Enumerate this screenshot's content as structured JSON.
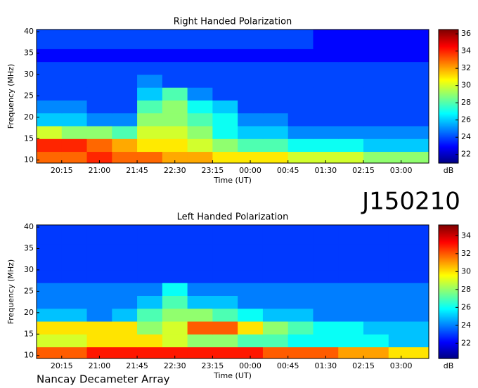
{
  "heading": "J150210",
  "footer": "Nancay Decameter Array",
  "chart_data": [
    {
      "type": "heatmap",
      "title": "Right Handed Polarization",
      "x_label": "Time (UT)",
      "y_label": "Frequency (MHz)",
      "colorbar_label": "dB",
      "xlim": [
        19.75,
        27.55
      ],
      "ylim": [
        9.3,
        40.5
      ],
      "xticks": [
        {
          "value": 20.25,
          "label": "20:15"
        },
        {
          "value": 21,
          "label": "21:00"
        },
        {
          "value": 21.75,
          "label": "21:45"
        },
        {
          "value": 22.5,
          "label": "22:30"
        },
        {
          "value": 23.25,
          "label": "23:15"
        },
        {
          "value": 24,
          "label": "00:00"
        },
        {
          "value": 24.75,
          "label": "00:45"
        },
        {
          "value": 25.5,
          "label": "01:30"
        },
        {
          "value": 26.25,
          "label": "02:15"
        },
        {
          "value": 27,
          "label": "03:00"
        }
      ],
      "yticks": [
        10,
        15,
        20,
        25,
        30,
        35,
        40
      ],
      "clim": [
        21,
        36.5
      ],
      "cticks": [
        22,
        24,
        26,
        28,
        30,
        32,
        34,
        36
      ],
      "x_bins": [
        19.75,
        20.25,
        20.75,
        21.25,
        21.75,
        22.25,
        22.75,
        23.25,
        23.75,
        24.25,
        24.75,
        25.25,
        25.75,
        26.25,
        26.75,
        27.55
      ],
      "y_bins": [
        9.3,
        12,
        15,
        18,
        21,
        24,
        27,
        30,
        33,
        36,
        40.5
      ],
      "z": [
        [
          33,
          33,
          34,
          33,
          33,
          32,
          32,
          31,
          31,
          31,
          30,
          30,
          30,
          29,
          29
        ],
        [
          34,
          34,
          33,
          32,
          31,
          31,
          30,
          29,
          28,
          28,
          27,
          27,
          27,
          26,
          26
        ],
        [
          30,
          29,
          29,
          28,
          30,
          30,
          29,
          27,
          26,
          26,
          25,
          25,
          25,
          25,
          25
        ],
        [
          26,
          26,
          25,
          25,
          29,
          29,
          28,
          27,
          25,
          25,
          24,
          24,
          24,
          24,
          24
        ],
        [
          25,
          25,
          24,
          24,
          28,
          29,
          27,
          26,
          24,
          24,
          24,
          24,
          24,
          24,
          24
        ],
        [
          24,
          24,
          24,
          24,
          26,
          28,
          25,
          24,
          24,
          24,
          24,
          24,
          24,
          24,
          24
        ],
        [
          24,
          24,
          24,
          24,
          25,
          24,
          24,
          24,
          24,
          24,
          24,
          24,
          24,
          24,
          24
        ],
        [
          24,
          24,
          24,
          24,
          24,
          24,
          24,
          24,
          24,
          24,
          24,
          24,
          24,
          24,
          24
        ],
        [
          23,
          23,
          23,
          23,
          23,
          23,
          23,
          23,
          23,
          23,
          23,
          23,
          23,
          23,
          23
        ],
        [
          24,
          24,
          24,
          24,
          24,
          24,
          24,
          24,
          24,
          24,
          24,
          23,
          23,
          23,
          23
        ]
      ]
    },
    {
      "type": "heatmap",
      "title": "Left Handed Polarization",
      "x_label": "Time (UT)",
      "y_label": "Frequency (MHz)",
      "colorbar_label": "dB",
      "xlim": [
        19.75,
        27.55
      ],
      "ylim": [
        9.3,
        40.5
      ],
      "xticks": [
        {
          "value": 20.25,
          "label": "20:15"
        },
        {
          "value": 21,
          "label": "21:00"
        },
        {
          "value": 21.75,
          "label": "21:45"
        },
        {
          "value": 22.5,
          "label": "22:30"
        },
        {
          "value": 23.25,
          "label": "23:15"
        },
        {
          "value": 24,
          "label": "00:00"
        },
        {
          "value": 24.75,
          "label": "00:45"
        },
        {
          "value": 25.5,
          "label": "01:30"
        },
        {
          "value": 26.25,
          "label": "02:15"
        },
        {
          "value": 27,
          "label": "03:00"
        }
      ],
      "yticks": [
        10,
        15,
        20,
        25,
        30,
        35,
        40
      ],
      "clim": [
        20.3,
        35.2
      ],
      "cticks": [
        22,
        24,
        26,
        28,
        30,
        32,
        34
      ],
      "x_bins": [
        19.75,
        20.25,
        20.75,
        21.25,
        21.75,
        22.25,
        22.75,
        23.25,
        23.75,
        24.25,
        24.75,
        25.25,
        25.75,
        26.25,
        26.75,
        27.55
      ],
      "y_bins": [
        9.3,
        12,
        15,
        18,
        21,
        24,
        27,
        30,
        33,
        36,
        40.5
      ],
      "z": [
        [
          32,
          32,
          33,
          33,
          33,
          33,
          33,
          33,
          33,
          32,
          32,
          32,
          31,
          31,
          30
        ],
        [
          29,
          29,
          30,
          30,
          30,
          29,
          28,
          28,
          27,
          27,
          26,
          26,
          26,
          26,
          25
        ],
        [
          30,
          30,
          30,
          30,
          28,
          29,
          32,
          32,
          30,
          28,
          27,
          26,
          26,
          25,
          25
        ],
        [
          25,
          25,
          24,
          25,
          27,
          28,
          28,
          27,
          26,
          25,
          25,
          24,
          24,
          24,
          24
        ],
        [
          24,
          24,
          24,
          24,
          25,
          27,
          25,
          25,
          24,
          24,
          24,
          24,
          24,
          24,
          24
        ],
        [
          24,
          24,
          24,
          24,
          24,
          26,
          24,
          24,
          24,
          24,
          24,
          24,
          24,
          24,
          24
        ],
        [
          23,
          23,
          23,
          23,
          23,
          23,
          23,
          23,
          23,
          23,
          23,
          23,
          23,
          23,
          23
        ],
        [
          23,
          23,
          23,
          23,
          23,
          23,
          23,
          23,
          23,
          23,
          23,
          23,
          23,
          23,
          23
        ],
        [
          23,
          23,
          23,
          23,
          23,
          23,
          23,
          23,
          23,
          23,
          23,
          23,
          23,
          23,
          23
        ],
        [
          23,
          23,
          23,
          23,
          23,
          23,
          23,
          23,
          23,
          23,
          23,
          23,
          23,
          23,
          23
        ]
      ]
    }
  ]
}
